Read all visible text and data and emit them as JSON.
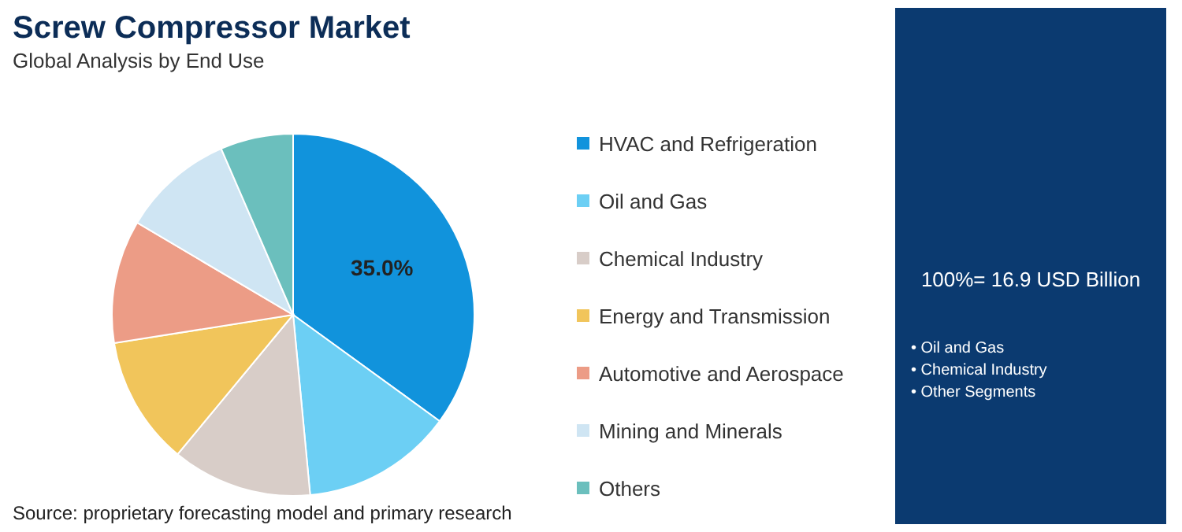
{
  "chart_data": {
    "type": "pie",
    "title": "Screw Compressor Market",
    "subtitle": "Global Analysis by End Use",
    "categories": [
      "HVAC and Refrigeration",
      "Oil and Gas",
      "Chemical Industry",
      "Energy and Transmission",
      "Automotive and Aerospace",
      "Mining and Minerals",
      "Others"
    ],
    "values": [
      35,
      13.5,
      12.5,
      11.5,
      11,
      10,
      6.5
    ],
    "colors": [
      "#1193dc",
      "#6ccff4",
      "#d8cdc8",
      "#f1c55b",
      "#ec9c86",
      "#cfe5f3",
      "#6bbfbd"
    ],
    "value_labels": [
      "35.0%",
      null,
      null,
      null,
      null,
      null,
      null
    ],
    "legend": "right",
    "annotations": [
      "100%= 16.9 USD Billion",
      "• Oil and Gas",
      "• Chemical Industry",
      "• Other Segments",
      "Source: proprietary forecasting model and primary research"
    ]
  }
}
